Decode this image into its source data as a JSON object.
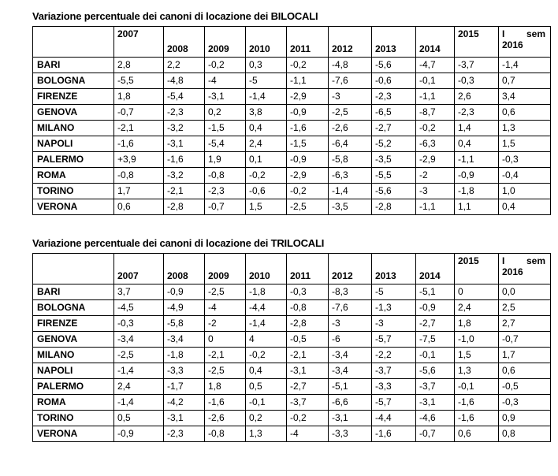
{
  "page": {
    "background_color": "#ffffff",
    "text_color": "#000000",
    "border_color": "#000000"
  },
  "tables": [
    {
      "title": "Variazione percentuale dei canoni di locazione dei BILOCALI",
      "year_headers": [
        "2007",
        "2008",
        "2009",
        "2010",
        "2011",
        "2012",
        "2013",
        "2014",
        "2015"
      ],
      "top_aligned_year_headers": [
        "2007",
        "2015"
      ],
      "last_column_header": {
        "line1_left": "I",
        "line1_right": "sem",
        "line2": "2016"
      },
      "top_value_columns": [
        0,
        8,
        9
      ],
      "rows": [
        {
          "city": "BARI",
          "values": [
            "2,8",
            "2,2",
            "-0,2",
            "0,3",
            "-0,2",
            "-4,8",
            "-5,6",
            "-4,7",
            "-3,7",
            "-1,4"
          ]
        },
        {
          "city": "BOLOGNA",
          "values": [
            "-5,5",
            "-4,8",
            "-4",
            "-5",
            "-1,1",
            "-7,6",
            "-0,6",
            "-0,1",
            "-0,3",
            "0,7"
          ]
        },
        {
          "city": "FIRENZE",
          "values": [
            "1,8",
            "-5,4",
            "-3,1",
            "-1,4",
            "-2,9",
            "-3",
            "-2,3",
            "-1,1",
            "2,6",
            "3,4"
          ]
        },
        {
          "city": "GENOVA",
          "values": [
            "-0,7",
            "-2,3",
            "0,2",
            "3,8",
            "-0,9",
            "-2,5",
            "-6,5",
            "-8,7",
            "-2,3",
            "0,6"
          ]
        },
        {
          "city": "MILANO",
          "values": [
            "-2,1",
            "-3,2",
            "-1,5",
            "0,4",
            "-1,6",
            "-2,6",
            "-2,7",
            "-0,2",
            "1,4",
            "1,3"
          ]
        },
        {
          "city": "NAPOLI",
          "values": [
            "-1,6",
            "-3,1",
            "-5,4",
            "2,4",
            "-1,5",
            "-6,4",
            "-5,2",
            "-6,3",
            "0,4",
            "1,5"
          ]
        },
        {
          "city": "PALERMO",
          "values": [
            "+3,9",
            "-1,6",
            "1,9",
            "0,1",
            "-0,9",
            "-5,8",
            "-3,5",
            "-2,9",
            "-1,1",
            "-0,3"
          ]
        },
        {
          "city": "ROMA",
          "values": [
            "-0,8",
            "-3,2",
            "-0,8",
            "-0,2",
            "-2,9",
            "-6,3",
            "-5,5",
            "-2",
            "-0,9",
            "-0,4"
          ]
        },
        {
          "city": "TORINO",
          "values": [
            "1,7",
            "-2,1",
            "-2,3",
            "-0,6",
            "-0,2",
            "-1,4",
            "-5,6",
            "-3",
            "-1,8",
            "1,0"
          ]
        },
        {
          "city": "VERONA",
          "values": [
            "0,6",
            "-2,8",
            "-0,7",
            "1,5",
            "-2,5",
            "-3,5",
            "-2,8",
            "-1,1",
            "1,1",
            "0,4"
          ]
        }
      ]
    },
    {
      "title": "Variazione percentuale dei canoni di locazione dei TRILOCALI",
      "year_headers": [
        "2007",
        "2008",
        "2009",
        "2010",
        "2011",
        "2012",
        "2013",
        "2014",
        "2015"
      ],
      "top_aligned_year_headers": [
        "2015"
      ],
      "last_column_header": {
        "line1_left": "I",
        "line1_right": "sem",
        "line2": "2016"
      },
      "top_value_columns": [
        8,
        9
      ],
      "rows": [
        {
          "city": "BARI",
          "values": [
            "3,7",
            "-0,9",
            "-2,5",
            "-1,8",
            "-0,3",
            "-8,3",
            "-5",
            "-5,1",
            "0",
            "0,0"
          ]
        },
        {
          "city": "BOLOGNA",
          "values": [
            "-4,5",
            "-4,9",
            "-4",
            "-4,4",
            "-0,8",
            "-7,6",
            "-1,3",
            "-0,9",
            "2,4",
            "2,5"
          ]
        },
        {
          "city": "FIRENZE",
          "values": [
            "-0,3",
            "-5,8",
            "-2",
            "-1,4",
            "-2,8",
            "-3",
            "-3",
            "-2,7",
            "1,8",
            "2,7"
          ]
        },
        {
          "city": "GENOVA",
          "values": [
            "-3,4",
            "-3,4",
            "0",
            "4",
            "-0,5",
            "-6",
            "-5,7",
            "-7,5",
            "-1,0",
            "-0,7"
          ]
        },
        {
          "city": "MILANO",
          "values": [
            "-2,5",
            "-1,8",
            "-2,1",
            "-0,2",
            "-2,1",
            "-3,4",
            "-2,2",
            "-0,1",
            "1,5",
            "1,7"
          ]
        },
        {
          "city": "NAPOLI",
          "values": [
            "-1,4",
            "-3,3",
            "-2,5",
            "0,4",
            "-3,1",
            "-3,4",
            "-3,7",
            "-5,6",
            "1,3",
            "0,6"
          ]
        },
        {
          "city": "PALERMO",
          "values": [
            "2,4",
            "-1,7",
            "1,8",
            "0,5",
            "-2,7",
            "-5,1",
            "-3,3",
            "-3,7",
            "-0,1",
            "-0,5"
          ]
        },
        {
          "city": "ROMA",
          "values": [
            "-1,4",
            "-4,2",
            "-1,6",
            "-0,1",
            "-3,7",
            "-6,6",
            "-5,7",
            "-3,1",
            "-1,6",
            "-0,3"
          ]
        },
        {
          "city": "TORINO",
          "values": [
            "0,5",
            "-3,1",
            "-2,6",
            "0,2",
            "-0,2",
            "-3,1",
            "-4,4",
            "-4,6",
            "-1,6",
            "0,9"
          ]
        },
        {
          "city": "VERONA",
          "values": [
            "-0,9",
            "-2,3",
            "-0,8",
            "1,3",
            "-4",
            "-3,3",
            "-1,6",
            "-0,7",
            "0,6",
            "0,8"
          ]
        }
      ]
    }
  ]
}
